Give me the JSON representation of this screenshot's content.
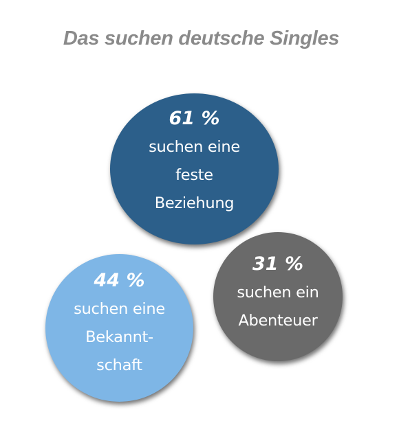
{
  "colors": {
    "title": "#8a8a8a",
    "feste_beziehung": "#2c5f8a",
    "abenteuer": "#6a6a6a",
    "bekanntschaft": "#7eb6e6",
    "text": "#ffffff"
  },
  "chart_data": {
    "type": "bubble",
    "title": "Das suchen deutsche Singles",
    "unit": "%",
    "items": [
      {
        "key": "feste_beziehung",
        "value": 61,
        "value_label": "61 %",
        "label_lines": [
          "suchen eine",
          "feste",
          "Beziehung"
        ]
      },
      {
        "key": "abenteuer",
        "value": 31,
        "value_label": "31 %",
        "label_lines": [
          "suchen ein",
          "Abenteuer"
        ]
      },
      {
        "key": "bekanntschaft",
        "value": 44,
        "value_label": "44 %",
        "label_lines": [
          "suchen eine",
          "Bekannt-",
          "schaft"
        ]
      }
    ]
  }
}
